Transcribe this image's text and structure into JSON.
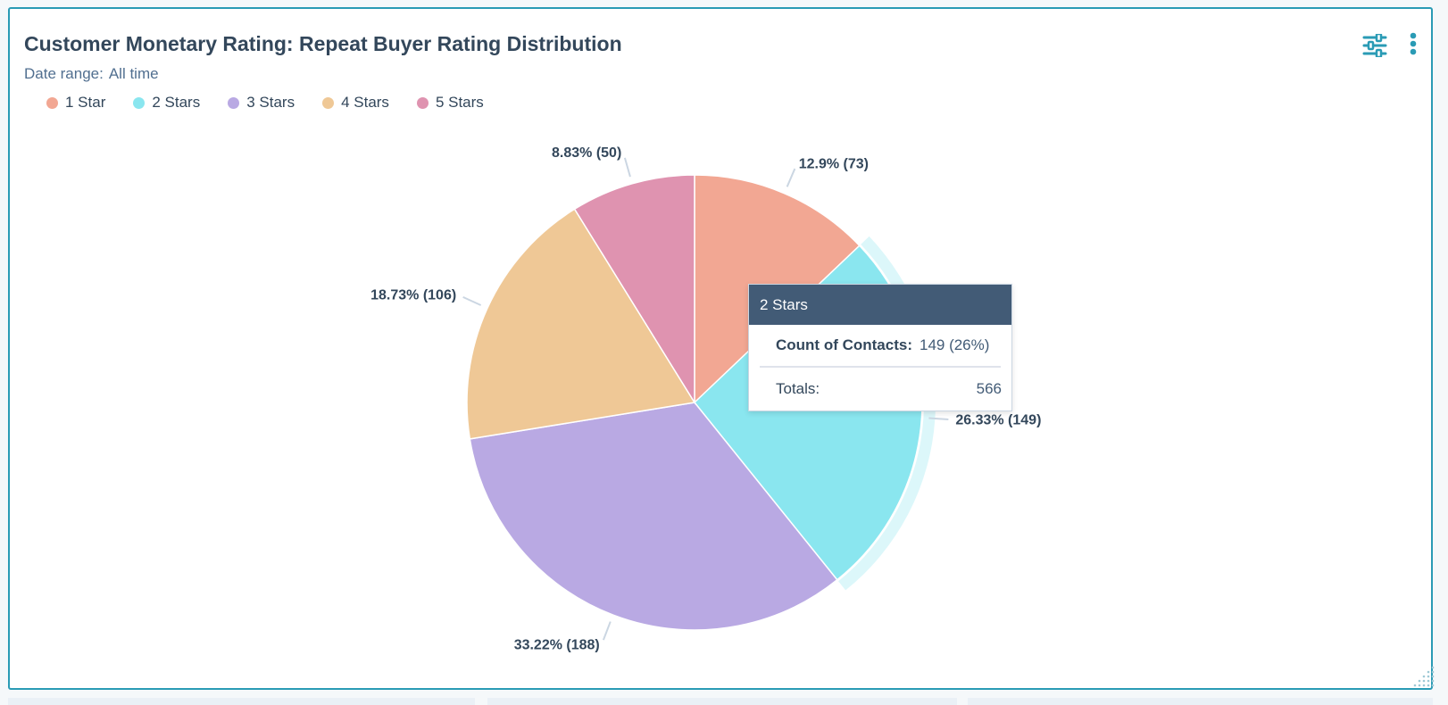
{
  "card": {
    "title": "Customer Monetary Rating: Repeat Buyer Rating Distribution",
    "date_range_label": "Date range:",
    "date_range_value": "All time"
  },
  "icons": {
    "filter": "sliders-icon",
    "more": "more-vertical-icon"
  },
  "legend": [
    {
      "label": "1 Star",
      "color": "#f2a793"
    },
    {
      "label": "2 Stars",
      "color": "#8ae6ef"
    },
    {
      "label": "3 Stars",
      "color": "#b9a9e3"
    },
    {
      "label": "4 Stars",
      "color": "#efc896"
    },
    {
      "label": "5 Stars",
      "color": "#df93b0"
    }
  ],
  "chart_data": {
    "type": "pie",
    "categories": [
      "1 Star",
      "2 Stars",
      "3 Stars",
      "4 Stars",
      "5 Stars"
    ],
    "values": [
      73,
      149,
      188,
      106,
      50
    ],
    "percentages": [
      12.9,
      26.33,
      33.22,
      18.73,
      8.83
    ],
    "labels": [
      "12.9% (73)",
      "26.33% (149)",
      "33.22% (188)",
      "18.73% (106)",
      "8.83% (50)"
    ],
    "colors": [
      "#f2a793",
      "#8ae6ef",
      "#b9a9e3",
      "#efc896",
      "#df93b0"
    ],
    "highlighted": "2 Stars",
    "legend_position": "top-left"
  },
  "tooltip": {
    "title": "2 Stars",
    "metric_label": "Count of Contacts:",
    "metric_value": "149 (26%)",
    "totals_label": "Totals:",
    "totals_value": "566"
  }
}
